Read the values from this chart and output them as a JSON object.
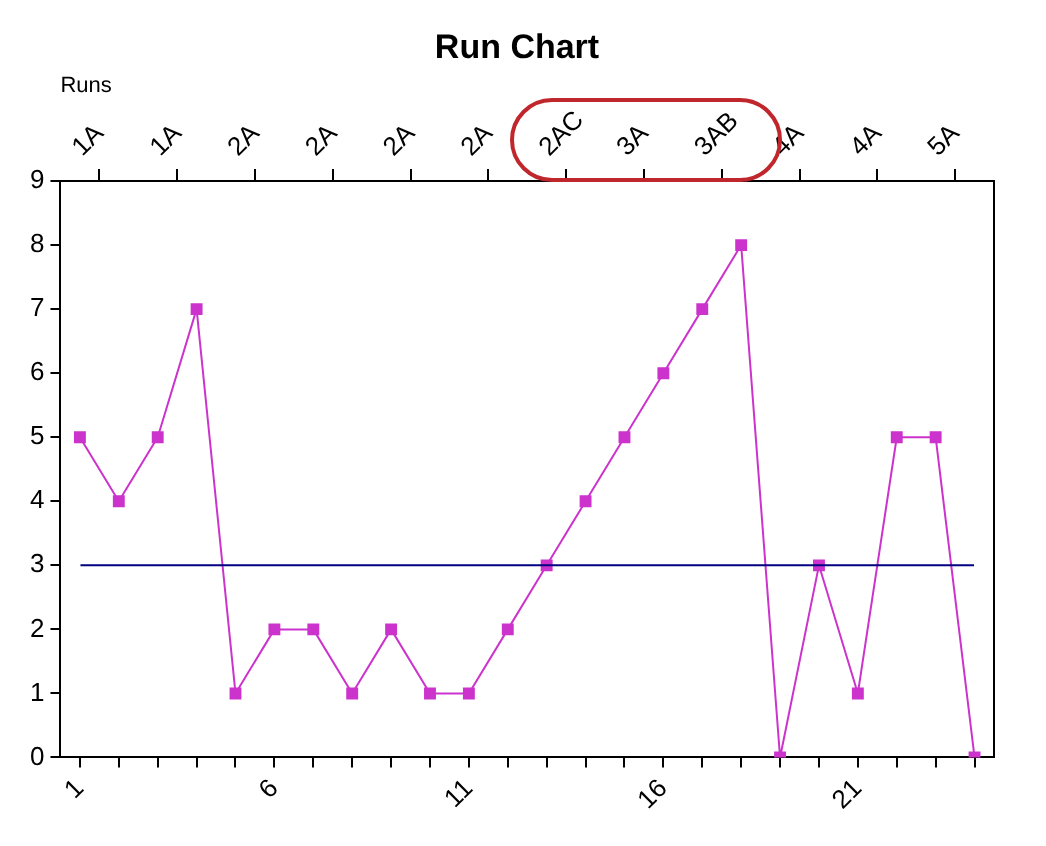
{
  "chart_data": {
    "type": "line",
    "title": "Run Chart",
    "x2label": "Runs",
    "x": [
      1,
      2,
      3,
      4,
      5,
      6,
      7,
      8,
      9,
      10,
      11,
      12,
      13,
      14,
      15,
      16,
      17,
      18,
      19,
      20,
      21,
      22,
      23,
      24
    ],
    "series": [
      {
        "color": "#cc33cc",
        "values": [
          5,
          4,
          5,
          7,
          1,
          2,
          2,
          1,
          2,
          1,
          1,
          2,
          3,
          4,
          5,
          6,
          7,
          8,
          0,
          3,
          1,
          5,
          5,
          0
        ]
      }
    ],
    "marker": "square",
    "line_style": "solid",
    "grid": false,
    "legend": false,
    "xlim": [
      0.5,
      24.5
    ],
    "xticks": [
      1,
      {
        "value": 2,
        "label": null
      },
      {
        "value": 3,
        "label": null
      },
      {
        "value": 4,
        "label": null
      },
      {
        "value": 5,
        "label": null
      },
      6,
      {
        "value": 7,
        "label": null
      },
      {
        "value": 8,
        "label": null
      },
      {
        "value": 9,
        "label": null
      },
      {
        "value": 10,
        "label": null
      },
      11,
      {
        "value": 12,
        "label": null
      },
      {
        "value": 13,
        "label": null
      },
      {
        "value": 14,
        "label": null
      },
      {
        "value": 15,
        "label": null
      },
      16,
      {
        "value": 17,
        "label": null
      },
      {
        "value": 18,
        "label": null
      },
      {
        "value": 19,
        "label": null
      },
      {
        "value": 20,
        "label": null
      },
      21,
      {
        "value": 22,
        "label": null
      },
      {
        "value": 23,
        "label": null
      },
      {
        "value": 24,
        "label": null
      }
    ],
    "annotations": [
      "1A",
      "1A",
      "2A",
      "2A",
      "2A",
      "2A",
      "2AC",
      "3A",
      "3AB",
      "4A",
      "4A",
      "5A"
    ],
    "ylim": [
      0,
      9
    ],
    "yticks": [
      0,
      1,
      2,
      3,
      4,
      5,
      6,
      7,
      8,
      9
    ],
    "ref_lines": [
      {
        "axis": "y",
        "value": 3,
        "color": "#000080"
      }
    ]
  }
}
